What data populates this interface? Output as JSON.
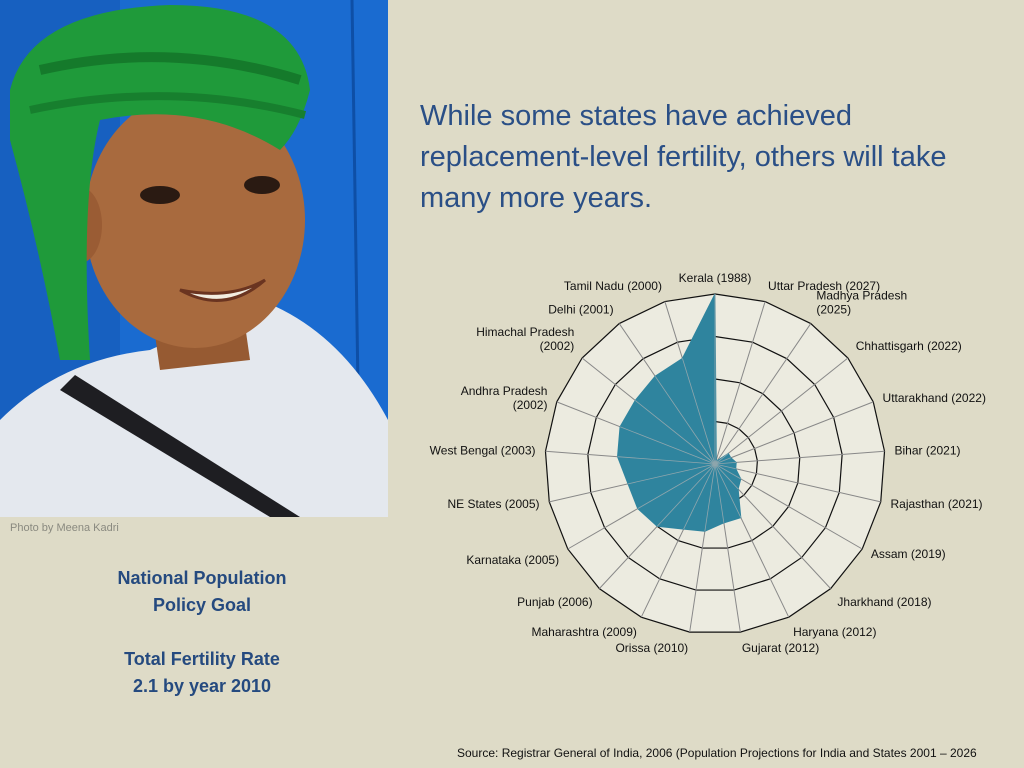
{
  "photo": {
    "description_icon": "boy-portrait-photo",
    "credit": "Photo by Meena Kadri",
    "colors": {
      "wall": "#1a6bd0",
      "turban": "#1f9a3a",
      "shirt": "#e4e8ee",
      "skin": "#a86a3e"
    }
  },
  "title": "While some states have achieved replacement-level fertility, others will take many more years.",
  "policy": {
    "line1": "National Population",
    "line2": "Policy Goal",
    "line3": "Total Fertility Rate",
    "line4": "2.1 by year 2010"
  },
  "source": "Source: Registrar General of India, 2006 (Population Projections for India and States 2001 – 2026",
  "colors": {
    "fill": "#2f849e",
    "grid": "#111111",
    "spoke": "#888888",
    "title": "#2a4f86"
  },
  "chart_data": {
    "type": "radar",
    "grid": true,
    "rings": 4,
    "ring_max": 40,
    "categories": [
      {
        "lines": [
          "Kerala (1988)"
        ],
        "value": 40
      },
      {
        "lines": [
          "Uttar Pradesh (2027)"
        ],
        "value": 1
      },
      {
        "lines": [
          "Madhya Pradesh",
          "(2025)"
        ],
        "value": 1
      },
      {
        "lines": [
          "Chhattisgarh (2022)"
        ],
        "value": 4
      },
      {
        "lines": [
          "Uttarakhand (2022)"
        ],
        "value": 4
      },
      {
        "lines": [
          "Bihar (2021)"
        ],
        "value": 5
      },
      {
        "lines": [
          "Rajasthan (2021)"
        ],
        "value": 5
      },
      {
        "lines": [
          "Assam (2019)"
        ],
        "value": 7
      },
      {
        "lines": [
          "Jharkhand (2018)"
        ],
        "value": 8
      },
      {
        "lines": [
          "Haryana (2012)"
        ],
        "value": 14
      },
      {
        "lines": [
          "Gujarat (2012)"
        ],
        "value": 14
      },
      {
        "lines": [
          "Orissa (2010)"
        ],
        "value": 16
      },
      {
        "lines": [
          "Maharashtra (2009)"
        ],
        "value": 17
      },
      {
        "lines": [
          "Punjab (2006)"
        ],
        "value": 20
      },
      {
        "lines": [
          "Karnataka (2005)"
        ],
        "value": 21
      },
      {
        "lines": [
          "NE States (2005)"
        ],
        "value": 21
      },
      {
        "lines": [
          "West Bengal (2003)"
        ],
        "value": 23
      },
      {
        "lines": [
          "Andhra Pradesh",
          "(2002)"
        ],
        "value": 24
      },
      {
        "lines": [
          "Himachal Pradesh",
          "(2002)"
        ],
        "value": 24
      },
      {
        "lines": [
          "Delhi (2001)"
        ],
        "value": 25
      },
      {
        "lines": [
          "Tamil Nadu (2000)"
        ],
        "value": 26
      }
    ]
  }
}
